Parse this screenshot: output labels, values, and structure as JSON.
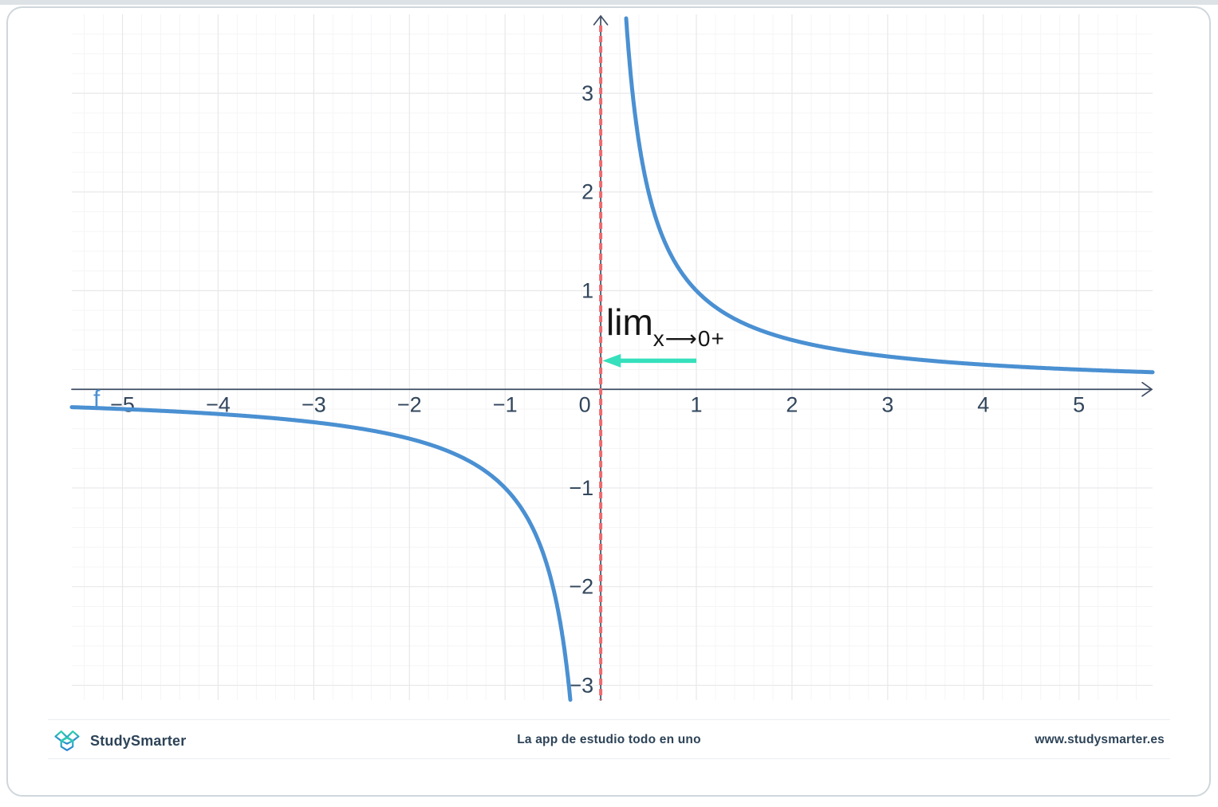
{
  "chart_data": {
    "type": "line",
    "title": "",
    "xlabel": "",
    "ylabel": "",
    "xlim": [
      -5.53,
      5.77
    ],
    "ylim": [
      -3.15,
      3.8
    ],
    "x_ticks": [
      -5,
      -4,
      -3,
      -2,
      -1,
      0,
      1,
      2,
      3,
      4,
      5
    ],
    "y_ticks": [
      -3,
      -2,
      -1,
      1,
      2,
      3
    ],
    "grid": {
      "visible": true,
      "major_step": 1,
      "minor_step": 0.2
    },
    "series": [
      {
        "name": "f",
        "expression": "1/x",
        "color": "#4a90d2",
        "branches": [
          [
            -5.53,
            -0.317
          ],
          [
            0.263,
            5.77
          ]
        ]
      }
    ],
    "asymptote": {
      "axis": "vertical",
      "x": 0,
      "style": "dashed",
      "color": "#ee6a6e"
    },
    "annotation": {
      "main": "lim",
      "sub": "x⟶0+",
      "arrow_from_x": 1.0,
      "arrow_to_x": 0.01,
      "arrow_y": 0.29,
      "arrow_color": "#36e0bc"
    },
    "curve_label": {
      "text": "f",
      "x": -5.27,
      "y": -0.1
    },
    "colors": {
      "axis": "#3e4d63",
      "tick_text": "#32465c",
      "grid_major": "#e8e8ea",
      "grid_minor": "#f5f5f6"
    }
  },
  "footer": {
    "brand": "StudySmarter",
    "tagline": "La app de estudio todo en uno",
    "website": "www.studysmarter.es",
    "logo_gradient": [
      "#2bd3ae",
      "#2b7fd2"
    ]
  }
}
